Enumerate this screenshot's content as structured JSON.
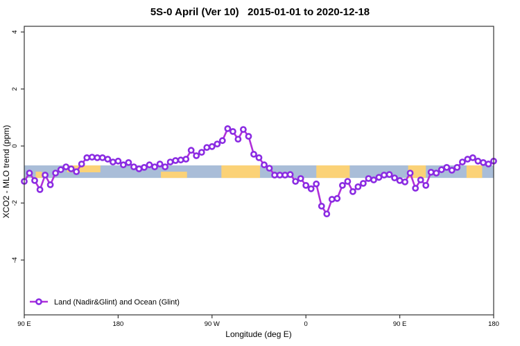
{
  "title": "5S-0 April (Ver 10)   2015-01-01 to 2020-12-18",
  "legend": {
    "label": "Land (Nadir&Glint) and Ocean (Glint)"
  },
  "colors": {
    "line": "#b02fd9",
    "marker_edge": "#8a2be2",
    "marker_fill": "#ffffff",
    "band_base": "#a9bdd8",
    "band_highlight": "#fbd277",
    "frame": "#333333",
    "text": "#000000"
  },
  "chart_data": {
    "type": "line",
    "title": "5S-0 April (Ver 10)   2015-01-01 to 2020-12-18",
    "xlabel": "Longitude (deg E)",
    "ylabel": "XCO2 - MLO trend (ppm)",
    "legend_entries": [
      "Land (Nadir&Glint) and Ocean (Glint)"
    ],
    "legend_position": "bottom-left",
    "grid": false,
    "xlim": [
      90,
      540
    ],
    "ylim": [
      -5.9,
      4.2
    ],
    "x_axis_note": "longitude axis wraps: 90E, 180, 90W, 0, 90E, 180",
    "x_ticks": [
      {
        "v": 90,
        "label": "90 E"
      },
      {
        "v": 180,
        "label": "180"
      },
      {
        "v": 270,
        "label": "90 W"
      },
      {
        "v": 360,
        "label": "0"
      },
      {
        "v": 450,
        "label": "90 E"
      },
      {
        "v": 540,
        "label": "180"
      }
    ],
    "y_ticks": [
      {
        "v": 4,
        "label": "4"
      },
      {
        "v": 2,
        "label": "2"
      },
      {
        "v": 0,
        "label": "0"
      },
      {
        "v": -2,
        "label": "-2"
      },
      {
        "v": -4,
        "label": "-4"
      }
    ],
    "band": {
      "description": "horizontal reference band near y=-0.9",
      "y_range": [
        -0.68,
        -1.12
      ],
      "base_color": "#a9bdd8",
      "highlight_color": "#fbd277",
      "highlight_segments": [
        {
          "lon_range": [
            101,
            107
          ],
          "part": "bottom"
        },
        {
          "lon_range": [
            131,
            163
          ],
          "part": "top"
        },
        {
          "lon_range": [
            221,
            246
          ],
          "part": "bottom"
        },
        {
          "lon_range": [
            279,
            316
          ],
          "part": "full"
        },
        {
          "lon_range": [
            370,
            402
          ],
          "part": "full"
        },
        {
          "lon_range": [
            458,
            475
          ],
          "part": "full"
        },
        {
          "lon_range": [
            514,
            529
          ],
          "part": "full"
        }
      ]
    },
    "x": [
      90,
      95,
      100,
      105,
      110,
      115,
      120,
      125,
      130,
      135,
      140,
      145,
      150,
      155,
      160,
      165,
      170,
      175,
      180,
      185,
      190,
      195,
      200,
      205,
      210,
      215,
      220,
      225,
      230,
      235,
      240,
      245,
      250,
      255,
      260,
      265,
      270,
      275,
      280,
      285,
      290,
      295,
      300,
      305,
      310,
      315,
      320,
      325,
      330,
      335,
      340,
      345,
      350,
      355,
      360,
      365,
      370,
      375,
      380,
      385,
      390,
      395,
      400,
      405,
      410,
      415,
      420,
      425,
      430,
      435,
      440,
      445,
      450,
      455,
      460,
      465,
      470,
      475,
      480,
      485,
      490,
      495,
      500,
      505,
      510,
      515,
      520,
      525,
      530,
      535,
      540
    ],
    "series": [
      {
        "name": "Land (Nadir&Glint) and Ocean (Glint)",
        "values": [
          -1.24,
          -0.95,
          -1.21,
          -1.53,
          -1.02,
          -1.36,
          -0.95,
          -0.83,
          -0.73,
          -0.8,
          -0.9,
          -0.63,
          -0.41,
          -0.39,
          -0.41,
          -0.41,
          -0.46,
          -0.56,
          -0.53,
          -0.66,
          -0.58,
          -0.73,
          -0.8,
          -0.75,
          -0.66,
          -0.73,
          -0.63,
          -0.73,
          -0.56,
          -0.51,
          -0.49,
          -0.46,
          -0.15,
          -0.34,
          -0.22,
          -0.05,
          -0.02,
          0.07,
          0.19,
          0.61,
          0.51,
          0.24,
          0.58,
          0.34,
          -0.29,
          -0.41,
          -0.66,
          -0.78,
          -1.02,
          -1.02,
          -1.02,
          -1.0,
          -1.24,
          -1.14,
          -1.38,
          -1.5,
          -1.33,
          -2.11,
          -2.38,
          -1.87,
          -1.84,
          -1.38,
          -1.24,
          -1.6,
          -1.43,
          -1.31,
          -1.14,
          -1.19,
          -1.1,
          -1.02,
          -1.0,
          -1.12,
          -1.21,
          -1.26,
          -0.95,
          -1.48,
          -1.19,
          -1.38,
          -0.92,
          -0.95,
          -0.83,
          -0.75,
          -0.85,
          -0.75,
          -0.56,
          -0.46,
          -0.41,
          -0.53,
          -0.58,
          -0.63,
          -0.53
        ]
      }
    ]
  }
}
